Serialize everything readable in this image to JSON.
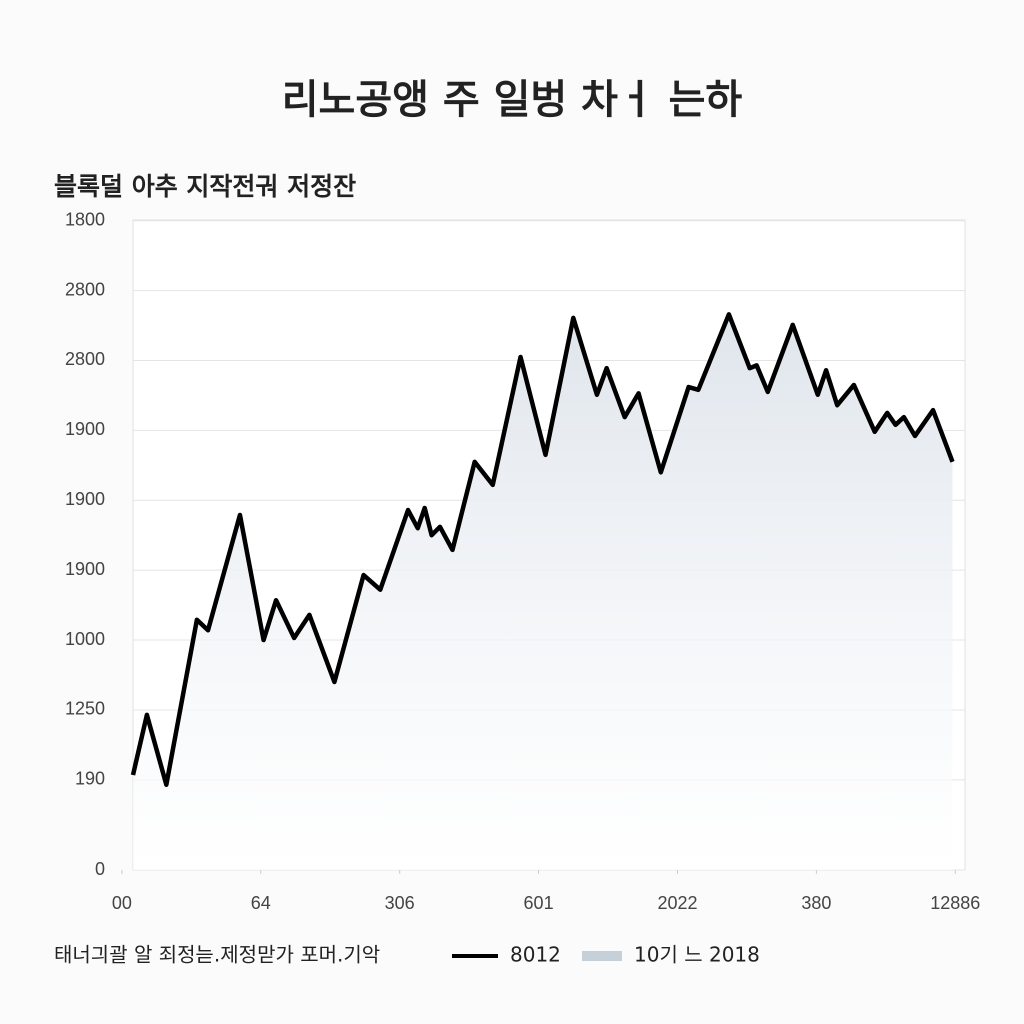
{
  "chart_data": {
    "type": "line",
    "title": "리노공앵 주 일벙 차ㅓ 는하",
    "subtitle": "블록덜 아추 지작전궈 저정잔",
    "note": "태너긔괄 알 죄정늗.제정맏가 포머.기악",
    "x": [
      0.08,
      0.18,
      0.32,
      0.54,
      0.62,
      0.85,
      1.02,
      1.11,
      1.24,
      1.35,
      1.53,
      1.74,
      1.86,
      2.06,
      2.13,
      2.18,
      2.23,
      2.29,
      2.38,
      2.54,
      2.67,
      2.87,
      3.05,
      3.25,
      3.42,
      3.49,
      3.62,
      3.72,
      3.88,
      4.08,
      4.15,
      4.37,
      4.52,
      4.57,
      4.65,
      4.83,
      5.01,
      5.07,
      5.15,
      5.27,
      5.42,
      5.51,
      5.57,
      5.63,
      5.71,
      5.84,
      5.98
    ],
    "series": [
      {
        "name": "8012",
        "color": "#000000",
        "values": [
          1.36,
          2.22,
          1.22,
          3.58,
          3.43,
          5.08,
          3.29,
          3.86,
          3.32,
          3.65,
          2.69,
          4.22,
          4.01,
          5.15,
          4.89,
          5.18,
          4.79,
          4.91,
          4.58,
          5.84,
          5.51,
          7.34,
          5.94,
          7.9,
          6.8,
          7.18,
          6.48,
          6.82,
          5.69,
          6.91,
          6.87,
          7.95,
          7.18,
          7.22,
          6.84,
          7.8,
          6.8,
          7.15,
          6.65,
          6.94,
          6.27,
          6.54,
          6.37,
          6.48,
          6.21,
          6.58,
          5.84
        ]
      }
    ],
    "area": {
      "name": "10기 느 2018",
      "color": "#c5d0d8"
    },
    "xlim": [
      0.08,
      6.07
    ],
    "xticks": [
      {
        "value": 0,
        "label": "00"
      },
      {
        "value": 1,
        "label": "64"
      },
      {
        "value": 2,
        "label": "306"
      },
      {
        "value": 3,
        "label": "601"
      },
      {
        "value": 4,
        "label": "2022"
      },
      {
        "value": 5,
        "label": "380"
      },
      {
        "value": 6,
        "label": "12886"
      }
    ],
    "ylim": [
      0,
      9.3
    ],
    "yticks": [
      0,
      {
        "value": 1.29,
        "label": "190"
      },
      {
        "value": 2.29,
        "label": "1250"
      },
      {
        "value": 3.29,
        "label": "1000"
      },
      {
        "value": 4.29,
        "label": "1900"
      },
      {
        "value": 5.29,
        "label": "1900"
      },
      {
        "value": 6.29,
        "label": "1900"
      },
      {
        "value": 7.29,
        "label": "2800"
      },
      {
        "value": 8.29,
        "label": "2800"
      },
      {
        "value": 9.29,
        "label": "1800"
      }
    ],
    "grid": true
  }
}
